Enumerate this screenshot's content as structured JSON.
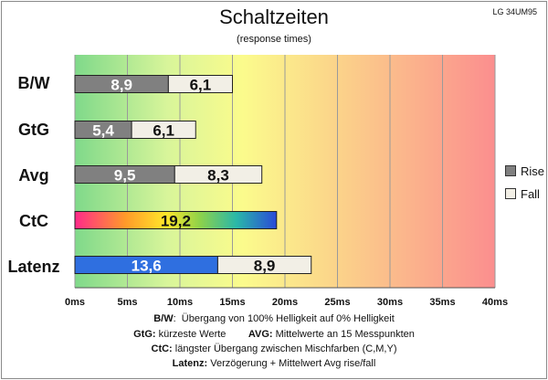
{
  "chart_data": {
    "type": "bar",
    "title": "Schaltzeiten",
    "subtitle": "(response times)",
    "model": "LG 34UM95",
    "categories": [
      "B/W",
      "GtG",
      "Avg",
      "CtC",
      "Latenz"
    ],
    "series": [
      {
        "name": "Rise",
        "values": [
          8.9,
          5.4,
          9.5,
          19.2,
          13.6
        ],
        "labels": [
          "8,9",
          "5,4",
          "9,5",
          "19,2",
          "13,6"
        ]
      },
      {
        "name": "Fall",
        "values": [
          6.1,
          6.1,
          8.3,
          null,
          8.9
        ],
        "labels": [
          "6,1",
          "6,1",
          "8,3",
          "",
          "8,9"
        ]
      }
    ],
    "stacked": true,
    "xlim": [
      0,
      40
    ],
    "tick_labels": [
      "0ms",
      "5ms",
      "10ms",
      "15ms",
      "20ms",
      "25ms",
      "30ms",
      "35ms",
      "40ms"
    ],
    "legend_position": "right",
    "grid": true
  },
  "footnotes": {
    "line1": {
      "label": "B/W",
      "text": "Übergang von 100% Helligkeit auf 0% Helligkeit"
    },
    "line2a": {
      "label": "GtG:",
      "text": "kürzeste  Werte"
    },
    "line2b": {
      "label": "AVG:",
      "text": "Mittelwerte  an 15 Messpunkten"
    },
    "line3": {
      "label": "CtC:",
      "text": "längster Übergang  zwischen Mischfarben  (C,M,Y)"
    },
    "line4": {
      "label": "Latenz:",
      "text": "Verzögerung  + Mittelwert  Avg rise/fall"
    }
  },
  "colors": {
    "rise": "#808080",
    "fall": "#f2efe6",
    "latenz_rise": "#2f6fe0",
    "bar_border": "#222222",
    "grid": "#9a9a9a"
  }
}
